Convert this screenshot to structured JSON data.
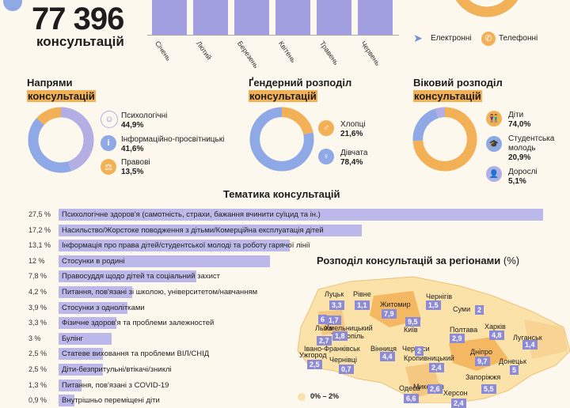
{
  "total": {
    "number": "77 396",
    "label": "консультацій"
  },
  "months": [
    "Січень",
    "Лютий",
    "Березень",
    "Квітень",
    "Травень",
    "Червень"
  ],
  "channels": [
    {
      "label": "Електронні",
      "icon": "send-icon",
      "color": "#8fa8e6"
    },
    {
      "label": "Телефонні",
      "icon": "phone-icon",
      "color": "#f2b057"
    }
  ],
  "directions": {
    "title_line1": "Напрями",
    "title_line2": "консультацій",
    "items": [
      {
        "label": "Психологічні",
        "value": "44,9%",
        "pct": 44.9,
        "color": "#b3aee3",
        "icon": "head-icon"
      },
      {
        "label": "Інформаційно-просвітницькі",
        "value": "41,6%",
        "pct": 41.6,
        "color": "#8fa8e6",
        "icon": "info-icon"
      },
      {
        "label": "Правові",
        "value": "13,5%",
        "pct": 13.5,
        "color": "#f2b057",
        "icon": "scales-icon"
      }
    ]
  },
  "gender": {
    "title_line1": "Ґендерний розподіл",
    "title_line2": "консультацій",
    "items": [
      {
        "label": "Хлопці",
        "value": "21,6%",
        "pct": 21.6,
        "color": "#f2b057",
        "icon": "male-icon"
      },
      {
        "label": "Дівчата",
        "value": "78,4%",
        "pct": 78.4,
        "color": "#8fa8e6",
        "icon": "female-icon"
      }
    ]
  },
  "age": {
    "title_line1": "Віковий розподіл",
    "title_line2": "консультацій",
    "items": [
      {
        "label": "Діти",
        "value": "74,0%",
        "pct": 74.0,
        "color": "#f2b057",
        "icon": "children-icon"
      },
      {
        "label": "Студентська молодь",
        "value": "20,9%",
        "pct": 20.9,
        "color": "#8fa8e6",
        "icon": "student-icon"
      },
      {
        "label": "Дорослі",
        "value": "5,1%",
        "pct": 5.1,
        "color": "#b3aee3",
        "icon": "adult-icon"
      }
    ]
  },
  "topics": {
    "title": "Тематика консультацій",
    "rows": [
      {
        "pct": "27,5 %",
        "value": 27.5,
        "label": "Психологічне здоров'я (самотність, страхи, бажання вчинити суїцид та ін.)"
      },
      {
        "pct": "17,2 %",
        "value": 17.2,
        "label": "Насильство/Жорстоке поводження з дітьми/Комерційна експлуатація дітей"
      },
      {
        "pct": "13,1 %",
        "value": 13.1,
        "label": "Інформація про права дітей/студентської молоді та роботу гарячої лінії"
      },
      {
        "pct": "12 %",
        "value": 12,
        "label": "Стосунки в родині"
      },
      {
        "pct": "7,8 %",
        "value": 7.8,
        "label": "Правосуддя щодо дітей та соціальний захист"
      },
      {
        "pct": "4,2 %",
        "value": 4.2,
        "label": "Питання, пов'язані зі школою, університетом/навчанням"
      },
      {
        "pct": "3,9 %",
        "value": 3.9,
        "label": "Стосунки з однолітками"
      },
      {
        "pct": "3,3 %",
        "value": 3.3,
        "label": "Фізичне здоров'я та проблеми залежностей"
      },
      {
        "pct": "3 %",
        "value": 3,
        "label": "Булінг"
      },
      {
        "pct": "2,5 %",
        "value": 2.5,
        "label": "Статеве виховання та проблеми ВІЛ/СНІД"
      },
      {
        "pct": "2,5 %",
        "value": 2.5,
        "label": "Діти-безпритульні/втікачі/зниклі"
      },
      {
        "pct": "1,3 %",
        "value": 1.3,
        "label": "Питання, пов'язані з COVID-19"
      },
      {
        "pct": "0,9 %",
        "value": 0.9,
        "label": "Внутрішньо переміщені діти"
      }
    ]
  },
  "regions": {
    "title": "Розподіл консультацій за регіонами",
    "unit": "(%)",
    "legend_first": "0% – 2%",
    "items": [
      {
        "name": "Луцьк",
        "value": "3,3"
      },
      {
        "name": "Рівне",
        "value": "1,1"
      },
      {
        "name": "Житомир",
        "value": "7,9"
      },
      {
        "name": "Чернігів",
        "value": "1,5"
      },
      {
        "name": "Суми",
        "value": "2"
      },
      {
        "name": "Львів",
        "value": "6"
      },
      {
        "name": "Хмельницький",
        "value": "1,7"
      },
      {
        "name": "Тернопіль",
        "value": "1,8"
      },
      {
        "name": "Київ",
        "value": "9,5"
      },
      {
        "name": "Полтава",
        "value": "2,9"
      },
      {
        "name": "Харків",
        "value": "4,8"
      },
      {
        "name": "Луганськ",
        "value": "1,4"
      },
      {
        "name": "Івано-Франківськ",
        "value": "2,7"
      },
      {
        "name": "Ужгород",
        "value": "2,5"
      },
      {
        "name": "Чернівці",
        "value": "0,7"
      },
      {
        "name": "Вінниця",
        "value": "4,4"
      },
      {
        "name": "Черкаси",
        "value": "2"
      },
      {
        "name": "Кропивницький",
        "value": "2,4"
      },
      {
        "name": "Дніпро",
        "value": "9,7"
      },
      {
        "name": "Донецьк",
        "value": "5"
      },
      {
        "name": "Запоріжжя",
        "value": "5,5"
      },
      {
        "name": "Одеса",
        "value": "6,6"
      },
      {
        "name": "Миколаїв",
        "value": "2,6"
      },
      {
        "name": "Херсон",
        "value": "2,4"
      }
    ]
  },
  "chart_data": [
    {
      "type": "bar",
      "categories": [
        "Січень",
        "Лютий",
        "Березень",
        "Квітень",
        "Травень",
        "Червень"
      ]
    },
    {
      "type": "pie",
      "categories": [
        "Психологічні",
        "Інформаційно-просвітницькі",
        "Правові"
      ],
      "values": [
        44.9,
        41.6,
        13.5
      ]
    },
    {
      "type": "pie",
      "categories": [
        "Хлопці",
        "Дівчата"
      ],
      "values": [
        21.6,
        78.4
      ]
    },
    {
      "type": "pie",
      "categories": [
        "Діти",
        "Студентська молодь",
        "Дорослі"
      ],
      "values": [
        74.0,
        20.9,
        5.1
      ]
    },
    {
      "type": "bar",
      "title": "Тематика консультацій",
      "categories": [
        "Психологічне здоров'я (самотність, страхи, бажання вчинити суїцид та ін.)",
        "Насильство/Жорстоке поводження з дітьми/Комерційна експлуатація дітей",
        "Інформація про права дітей/студентської молоді та роботу гарячої лінії",
        "Стосунки в родині",
        "Правосуддя щодо дітей та соціальний захист",
        "Питання, пов'язані зі школою, університетом/навчанням",
        "Стосунки з однолітками",
        "Фізичне здоров'я та проблеми залежностей",
        "Булінг",
        "Статеве виховання та проблеми ВІЛ/СНІД",
        "Діти-безпритульні/втікачі/зниклі",
        "Питання, пов'язані з COVID-19",
        "Внутрішньо переміщені діти"
      ],
      "values": [
        27.5,
        17.2,
        13.1,
        12,
        7.8,
        4.2,
        3.9,
        3.3,
        3,
        2.5,
        2.5,
        1.3,
        0.9
      ]
    }
  ]
}
